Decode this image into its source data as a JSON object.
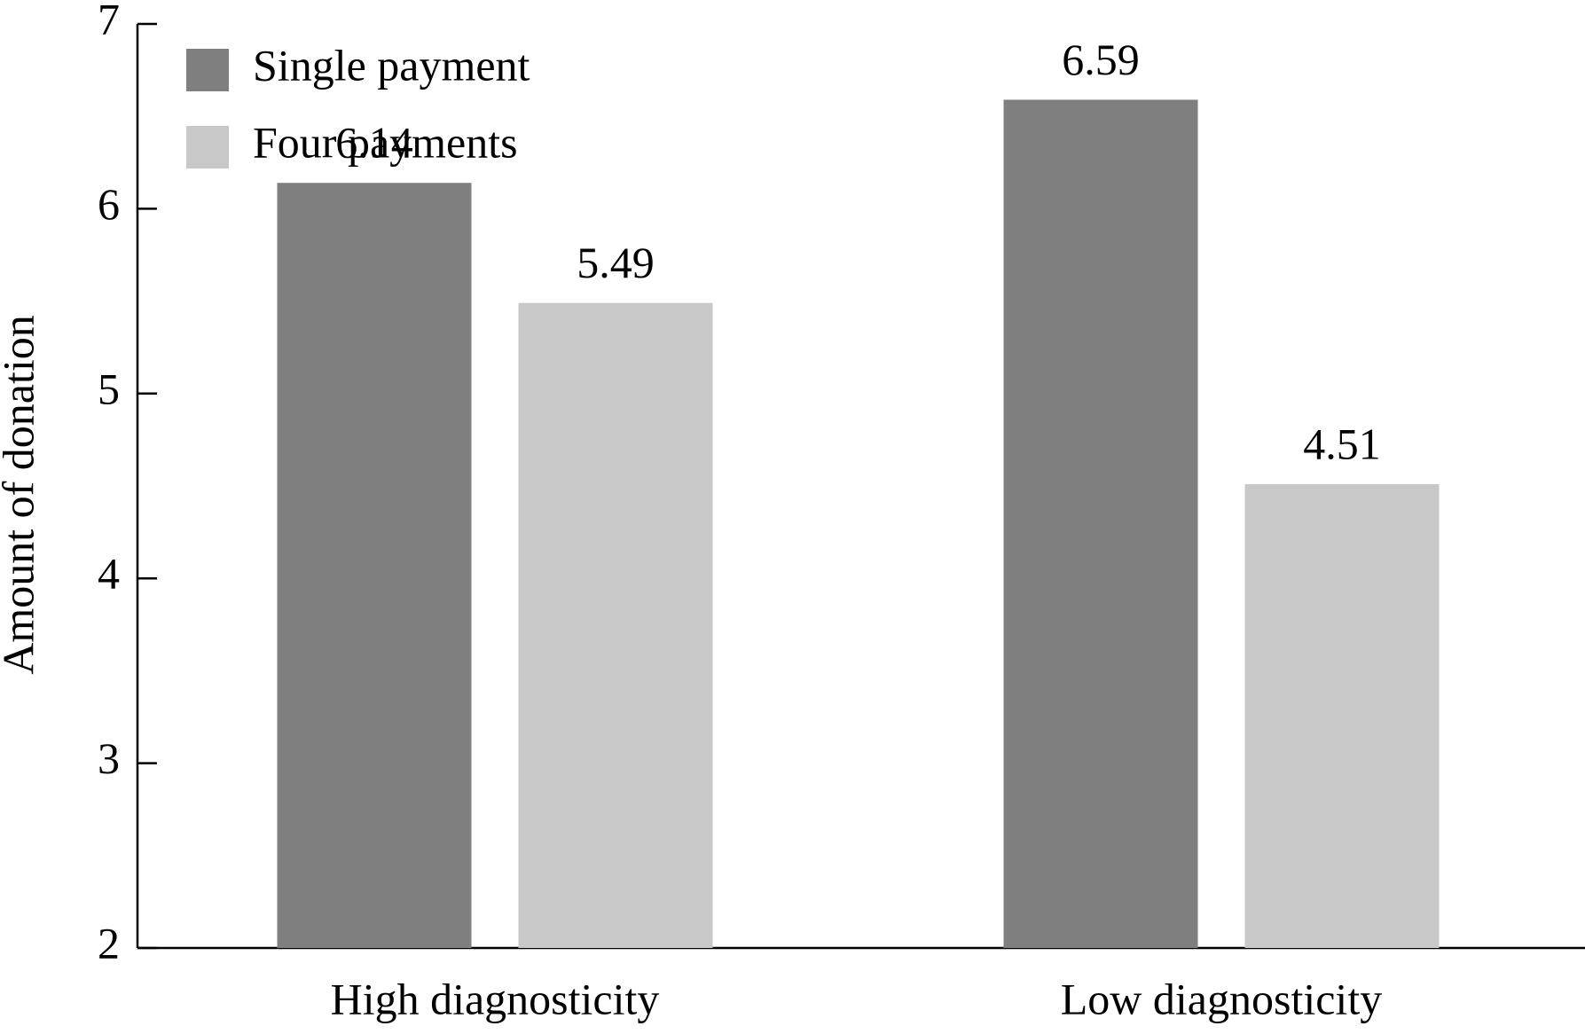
{
  "chart_data": {
    "type": "bar",
    "y_label": "Amount of donation",
    "categories": [
      "High diagnosticity",
      "Low diagnosticity"
    ],
    "series": [
      {
        "name": "Single payment",
        "color": "#7f7f7f",
        "values": [
          6.14,
          6.59
        ]
      },
      {
        "name": "Four payments",
        "color": "#c8c8c8",
        "values": [
          5.49,
          4.51
        ]
      }
    ],
    "ylim": [
      2,
      7
    ],
    "yticks": [
      2,
      3,
      4,
      5,
      6,
      7
    ],
    "grid": false,
    "legend": "upper left"
  }
}
